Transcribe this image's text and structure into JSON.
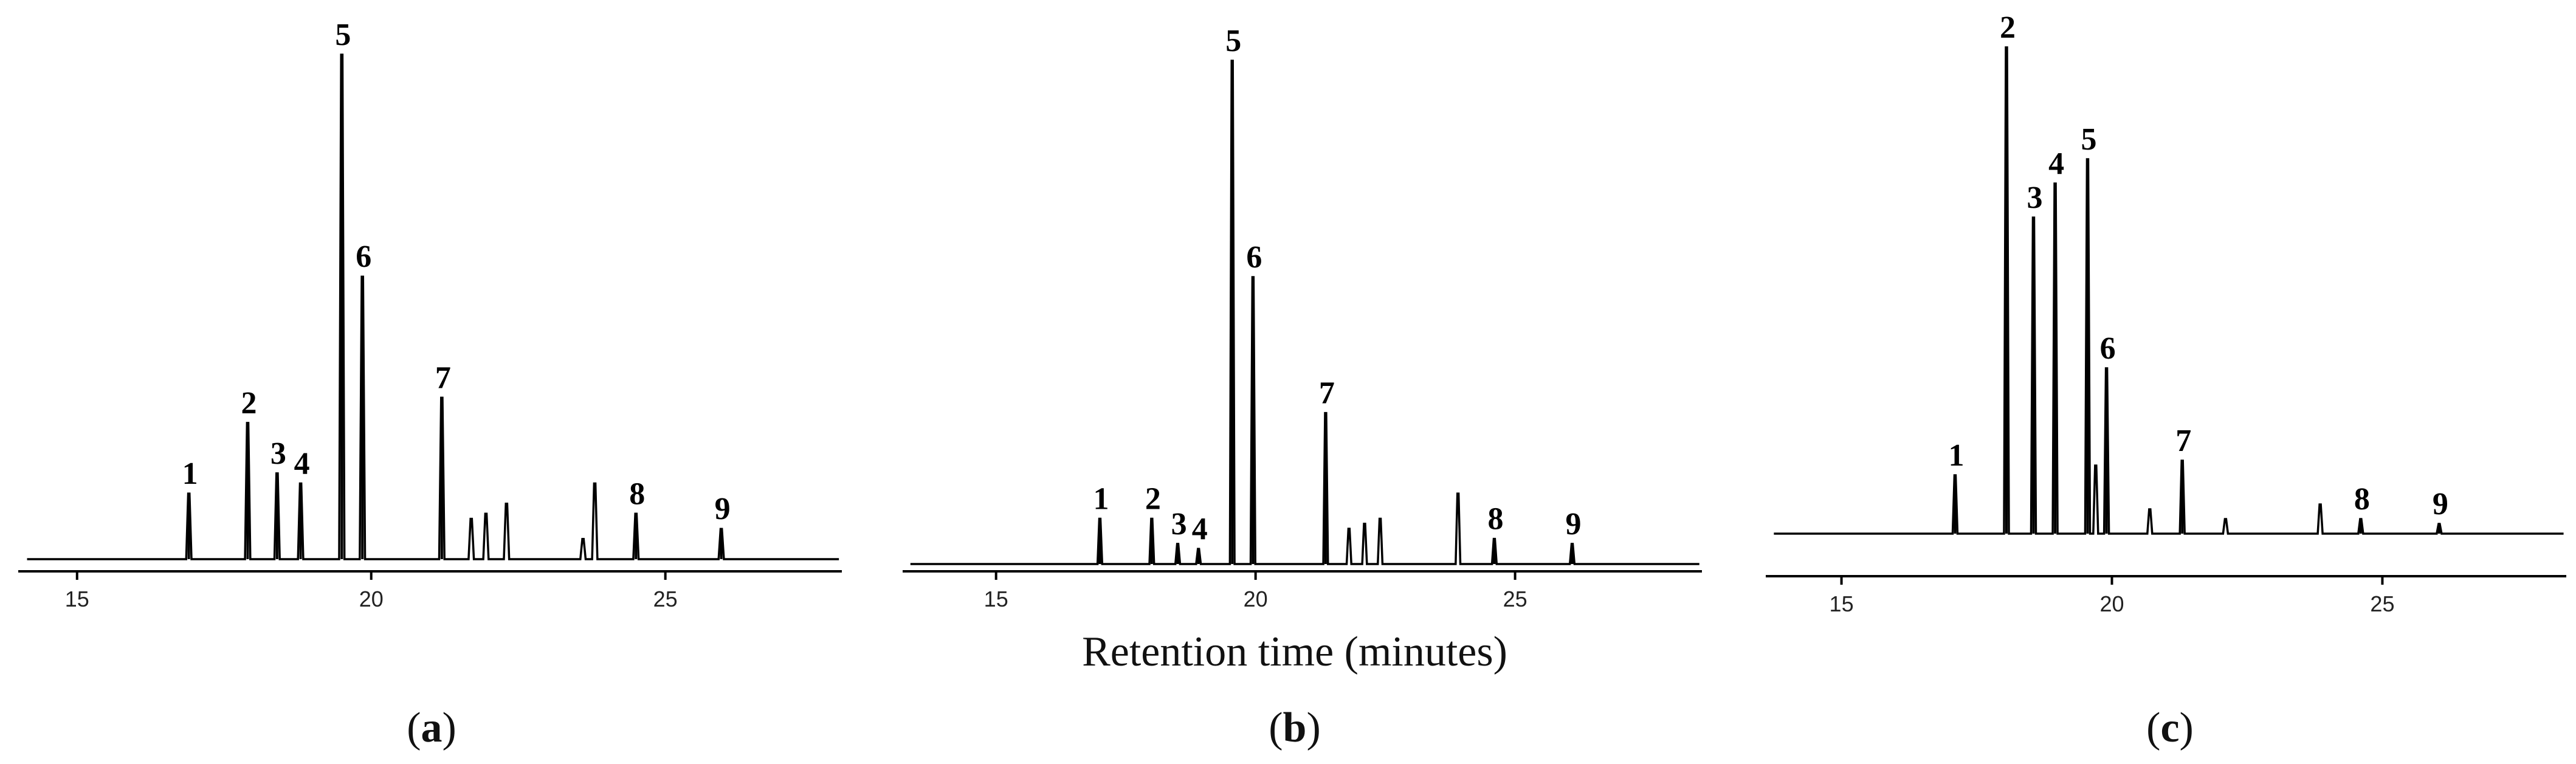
{
  "figure": {
    "xlabel": "Retention time (minutes)"
  },
  "chart_data": [
    {
      "type": "line",
      "panel_label": "(a)",
      "panel_letter": "a",
      "xlim": [
        14,
        28
      ],
      "xticks": [
        15,
        20,
        25
      ],
      "peaks": [
        {
          "label": "1",
          "x": 16.9,
          "y": 13
        },
        {
          "label": "2",
          "x": 17.9,
          "y": 27
        },
        {
          "label": "3",
          "x": 18.4,
          "y": 17
        },
        {
          "label": "4",
          "x": 18.8,
          "y": 15
        },
        {
          "label": "5",
          "x": 19.5,
          "y": 100
        },
        {
          "label": "6",
          "x": 19.85,
          "y": 56
        },
        {
          "label": "7",
          "x": 21.2,
          "y": 32
        },
        {
          "label": "8",
          "x": 24.5,
          "y": 9
        },
        {
          "label": "9",
          "x": 25.95,
          "y": 6
        }
      ],
      "minor_peaks": [
        {
          "x": 21.7,
          "y": 8
        },
        {
          "x": 21.95,
          "y": 9
        },
        {
          "x": 22.3,
          "y": 11
        },
        {
          "x": 23.8,
          "y": 15
        },
        {
          "x": 23.6,
          "y": 4
        }
      ]
    },
    {
      "type": "line",
      "panel_label": "(b)",
      "panel_letter": "b",
      "xlim": [
        13.2,
        28.6
      ],
      "xticks": [
        15,
        20,
        25
      ],
      "peaks": [
        {
          "label": "1",
          "x": 17.0,
          "y": 9
        },
        {
          "label": "2",
          "x": 18.0,
          "y": 9
        },
        {
          "label": "3",
          "x": 18.5,
          "y": 4
        },
        {
          "label": "4",
          "x": 18.9,
          "y": 3
        },
        {
          "label": "5",
          "x": 19.55,
          "y": 100
        },
        {
          "label": "6",
          "x": 19.95,
          "y": 57
        },
        {
          "label": "7",
          "x": 21.35,
          "y": 30
        },
        {
          "label": "8",
          "x": 24.6,
          "y": 5
        },
        {
          "label": "9",
          "x": 26.1,
          "y": 4
        }
      ],
      "minor_peaks": [
        {
          "x": 21.8,
          "y": 7
        },
        {
          "x": 22.1,
          "y": 8
        },
        {
          "x": 22.4,
          "y": 9
        },
        {
          "x": 23.9,
          "y": 14
        }
      ]
    },
    {
      "type": "line",
      "panel_label": "(c)",
      "panel_letter": "c",
      "xlim": [
        13.6,
        28.4
      ],
      "xticks": [
        15,
        20,
        25
      ],
      "peaks": [
        {
          "label": "1",
          "x": 17.1,
          "y": 12
        },
        {
          "label": "2",
          "x": 18.05,
          "y": 100
        },
        {
          "label": "3",
          "x": 18.55,
          "y": 65
        },
        {
          "label": "4",
          "x": 18.95,
          "y": 72
        },
        {
          "label": "5",
          "x": 19.55,
          "y": 77
        },
        {
          "label": "6",
          "x": 19.9,
          "y": 34
        },
        {
          "label": "7",
          "x": 21.3,
          "y": 15
        },
        {
          "label": "8",
          "x": 24.6,
          "y": 3
        },
        {
          "label": "9",
          "x": 26.05,
          "y": 2
        }
      ],
      "minor_peaks": [
        {
          "x": 19.7,
          "y": 14
        },
        {
          "x": 20.7,
          "y": 5
        },
        {
          "x": 22.1,
          "y": 3
        },
        {
          "x": 23.85,
          "y": 6
        }
      ]
    }
  ]
}
